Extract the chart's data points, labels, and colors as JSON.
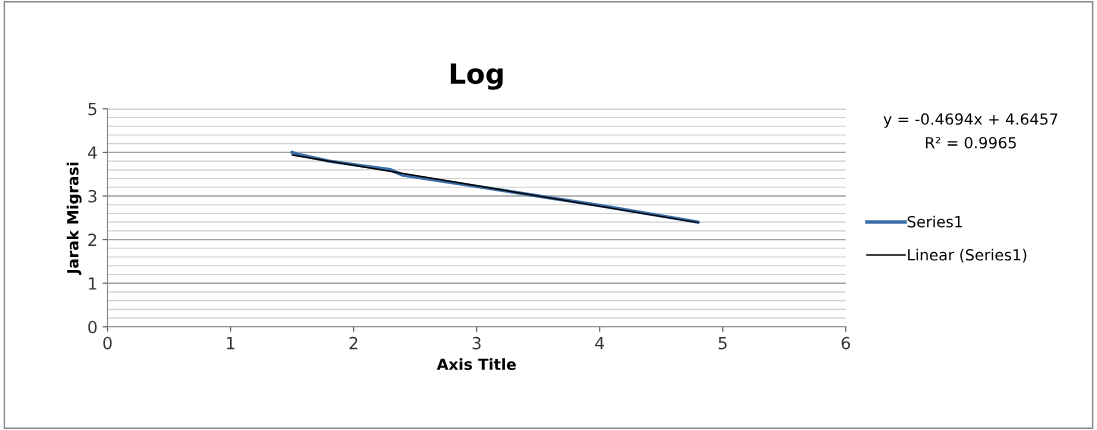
{
  "chart_data": {
    "type": "line",
    "title": "Log",
    "xlabel": "Axis Title",
    "ylabel": "Jarak Migrasi",
    "series": [
      {
        "name": "Series1",
        "color": "#3b6ea8",
        "x": [
          1.5,
          1.55,
          1.8,
          2.0,
          2.3,
          2.4,
          3.0,
          3.5,
          4.0,
          4.8
        ],
        "values": [
          4.0,
          3.95,
          3.8,
          3.72,
          3.6,
          3.48,
          3.22,
          3.0,
          2.78,
          2.4
        ]
      },
      {
        "name": "Linear (Series1)",
        "color": "#000000",
        "type": "line",
        "x": [
          1.5,
          4.8
        ],
        "values": [
          3.94,
          2.39
        ]
      }
    ],
    "annotations": [
      "y = -0.4694x + 4.6457",
      "R² = 0.9965"
    ],
    "xlim": [
      0,
      6
    ],
    "xticks": [
      0,
      1,
      2,
      3,
      4,
      5,
      6
    ],
    "ylim": [
      0,
      5
    ],
    "yticks": [
      0,
      1,
      2,
      3,
      4,
      5
    ],
    "grid": "y",
    "legend": "right",
    "marker": "none",
    "line_style": "solid"
  }
}
